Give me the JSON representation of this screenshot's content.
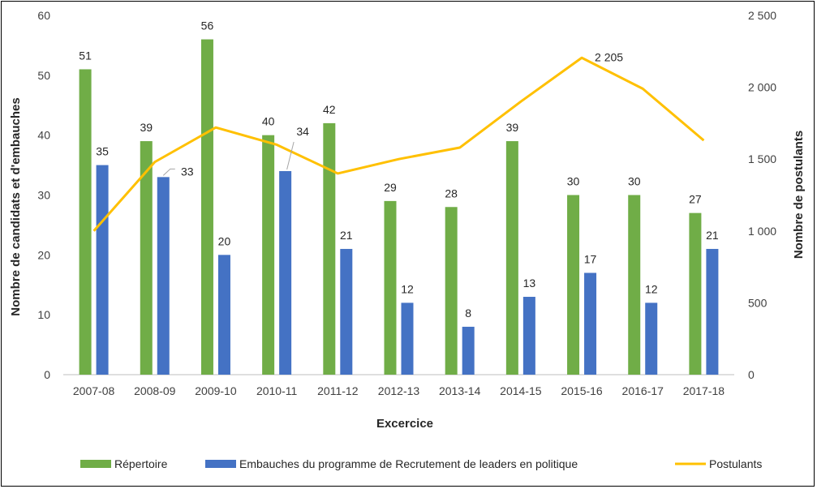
{
  "chart_data": {
    "type": "bar",
    "categories": [
      "2007-08",
      "2008-09",
      "2009-10",
      "2010-11",
      "2011-12",
      "2012-13",
      "2013-14",
      "2014-15",
      "2015-16",
      "2016-17",
      "2017-18"
    ],
    "series": [
      {
        "name": "Répertoire",
        "type": "bar",
        "axis": "left",
        "color": "#70ad47",
        "values": [
          51,
          39,
          56,
          40,
          42,
          29,
          28,
          39,
          30,
          30,
          27
        ]
      },
      {
        "name": "Embauches du programme de Recrutement de leaders en politique",
        "type": "bar",
        "axis": "left",
        "color": "#4472c4",
        "values": [
          35,
          33,
          20,
          34,
          21,
          12,
          8,
          13,
          17,
          12,
          21
        ]
      },
      {
        "name": "Postulants",
        "type": "line",
        "axis": "right",
        "color": "#ffc000",
        "values": [
          1000,
          1480,
          1720,
          1600,
          1400,
          1500,
          1580,
          1900,
          2205,
          1990,
          1630
        ],
        "labeled_points": [
          {
            "index": 8,
            "label": "2 205"
          }
        ]
      }
    ],
    "xlabel": "Excercice",
    "ylabel": "Nombre de candidats et d'embauches",
    "y2label": "Nombre de postulants",
    "ylim": [
      0,
      60
    ],
    "y2lim": [
      0,
      2500
    ],
    "yticks": [
      0,
      10,
      20,
      30,
      40,
      50,
      60
    ],
    "y2ticks": [
      "0",
      "500",
      "1 000",
      "1 500",
      "2 000",
      "2 500"
    ],
    "legend_position": "bottom",
    "grid": false
  }
}
